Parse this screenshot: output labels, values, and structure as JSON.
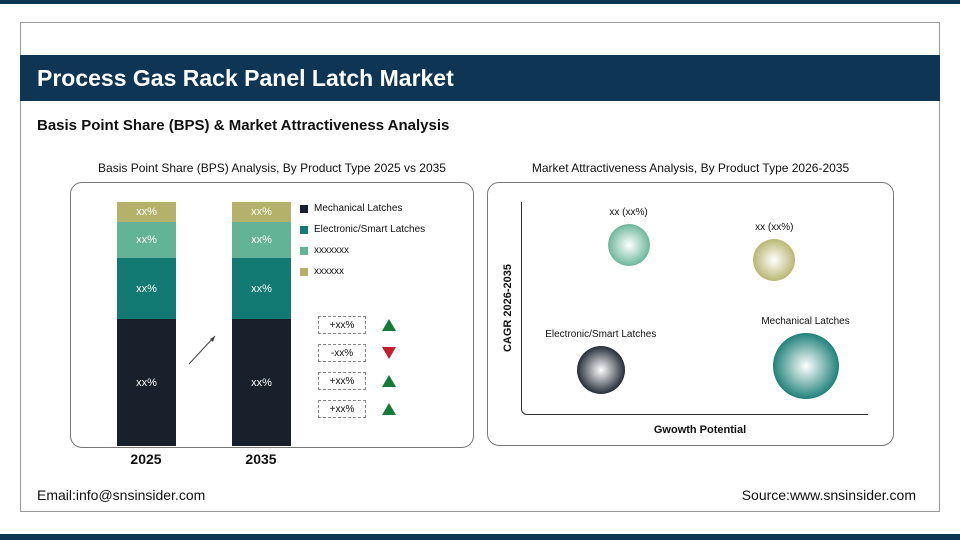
{
  "title": "Process Gas Rack Panel Latch Market",
  "subtitle": "Basis Point Share (BPS) & Market Attractiveness Analysis",
  "footer": {
    "email": "Email:info@snsinsider.com",
    "source": "Source:www.snsinsider.com"
  },
  "colors": {
    "header": "#0e3553",
    "mechanical": "#18202c",
    "electronic": "#127a72",
    "third": "#63b396",
    "fourth": "#b4b26a",
    "up": "#157a3a",
    "down": "#c0202a"
  },
  "chart_data": [
    {
      "type": "bar",
      "stacked": true,
      "title": "Basis Point Share (BPS) Analysis, By Product Type 2025 vs 2035",
      "categories": [
        "2025",
        "2035"
      ],
      "series": [
        {
          "name": "Mechanical Latches",
          "values": [
            52,
            52
          ],
          "labels": [
            "xx%",
            "xx%"
          ],
          "color": "#18202c"
        },
        {
          "name": "Electronic/Smart Latches",
          "values": [
            25,
            25
          ],
          "labels": [
            "xx%",
            "xx%"
          ],
          "color": "#127a72"
        },
        {
          "name": "xxxxxxx",
          "values": [
            15,
            15
          ],
          "labels": [
            "xx%",
            "xx%"
          ],
          "color": "#63b396"
        },
        {
          "name": "xxxxxx",
          "values": [
            8,
            8
          ],
          "labels": [
            "xx%",
            "xx%"
          ],
          "color": "#b4b26a"
        }
      ],
      "changes": [
        {
          "label": "+xx%",
          "direction": "up"
        },
        {
          "label": "-xx%",
          "direction": "down"
        },
        {
          "label": "+xx%",
          "direction": "up"
        },
        {
          "label": "+xx%",
          "direction": "up"
        }
      ],
      "legend": "right"
    },
    {
      "type": "scatter",
      "title": "Market Attractiveness Analysis, By Product Type 2026-2035",
      "xlabel": "Gwowth Potential",
      "ylabel": "CAGR 2026-2035",
      "xlim": [
        0,
        10
      ],
      "ylim": [
        0,
        10
      ],
      "points": [
        {
          "label": "xx (xx%)",
          "x": 3.1,
          "y": 8.0,
          "size": 21,
          "color": "#63b396"
        },
        {
          "label": "xx (xx%)",
          "x": 7.3,
          "y": 7.3,
          "size": 21,
          "color": "#b4b26a"
        },
        {
          "label": "Electronic/Smart Latches",
          "x": 2.3,
          "y": 2.1,
          "size": 24,
          "color": "#18202c"
        },
        {
          "label": "Mechanical Latches",
          "x": 8.2,
          "y": 2.3,
          "size": 33,
          "color": "#127a72"
        }
      ]
    }
  ]
}
